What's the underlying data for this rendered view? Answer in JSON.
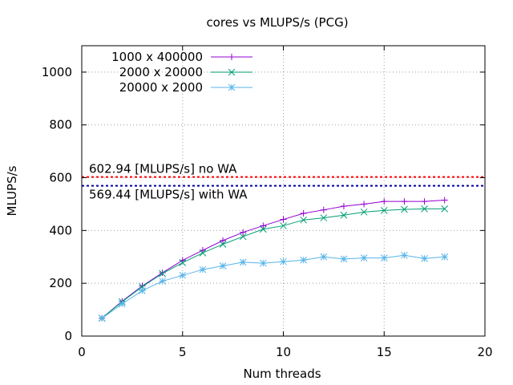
{
  "chart_data": {
    "type": "line",
    "title": "cores vs MLUPS/s (PCG)",
    "xlabel": "Num threads",
    "ylabel": "MLUPS/s",
    "xlim": [
      0,
      20
    ],
    "ylim": [
      0,
      1100
    ],
    "xticks": [
      0,
      5,
      10,
      15,
      20
    ],
    "yticks": [
      0,
      200,
      400,
      600,
      800,
      1000
    ],
    "grid": true,
    "legend_position": "top-left",
    "series": [
      {
        "name": "1000 x 400000",
        "color": "#9400d3",
        "marker": "plus",
        "x": [
          1,
          2,
          3,
          4,
          5,
          6,
          7,
          8,
          9,
          10,
          11,
          12,
          13,
          14,
          15,
          16,
          17,
          18
        ],
        "y": [
          68,
          132,
          190,
          240,
          287,
          325,
          362,
          393,
          418,
          442,
          465,
          478,
          492,
          500,
          510,
          510,
          510,
          515
        ]
      },
      {
        "name": "2000 x 20000",
        "color": "#009e73",
        "marker": "cross",
        "x": [
          1,
          2,
          3,
          4,
          5,
          6,
          7,
          8,
          9,
          10,
          11,
          12,
          13,
          14,
          15,
          16,
          17,
          18
        ],
        "y": [
          68,
          130,
          187,
          237,
          278,
          315,
          348,
          377,
          405,
          418,
          440,
          448,
          458,
          470,
          476,
          480,
          482,
          482
        ]
      },
      {
        "name": "20000 x 2000",
        "color": "#56b4e9",
        "marker": "star",
        "x": [
          1,
          2,
          3,
          4,
          5,
          6,
          7,
          8,
          9,
          10,
          11,
          12,
          13,
          14,
          15,
          16,
          17,
          18
        ],
        "y": [
          67,
          122,
          172,
          208,
          230,
          252,
          266,
          280,
          276,
          282,
          288,
          300,
          292,
          296,
          296,
          306,
          294,
          300
        ]
      }
    ],
    "reference_lines": [
      {
        "label": "602.94 [MLUPS/s] no WA",
        "value": 602.94,
        "color": "#ff0000"
      },
      {
        "label": "569.44 [MLUPS/s] with WA",
        "value": 569.44,
        "color": "#0000a0"
      }
    ]
  }
}
